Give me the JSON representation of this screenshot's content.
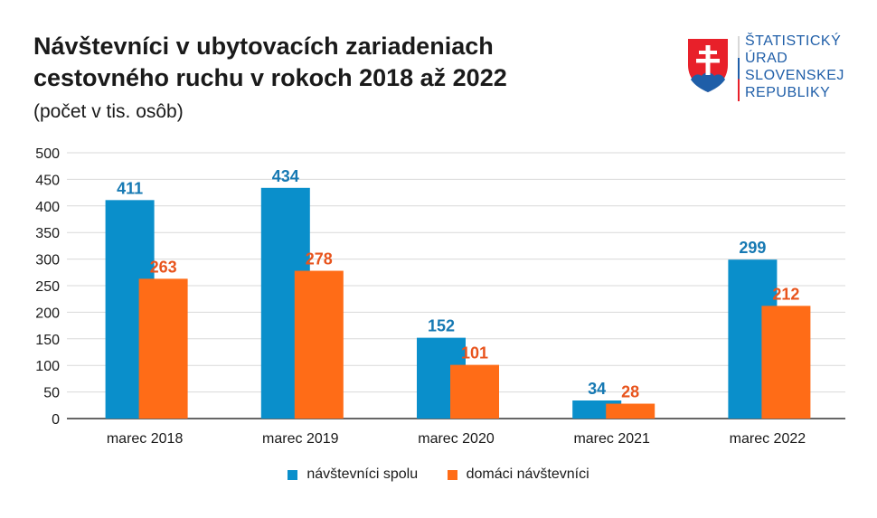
{
  "header": {
    "title_line1": "Návštevníci v ubytovacích zariadeniach",
    "title_line2": "cestovného ruchu v rokoch 2018 až 2022",
    "subtitle": "(počet v tis. osôb)"
  },
  "logo": {
    "line1": "ŠTATISTICKÝ",
    "line2": "ÚRAD",
    "line3": "SLOVENSKEJ",
    "line4": "REPUBLIKY",
    "text_color": "#1f5ea8"
  },
  "chart_data": {
    "type": "bar",
    "title": "Návštevníci v ubytovacích zariadeniach cestovného ruchu v rokoch 2018 až 2022",
    "subtitle": "(počet v tis. osôb)",
    "xlabel": "",
    "ylabel": "",
    "categories": [
      "marec 2018",
      "marec 2019",
      "marec 2020",
      "marec 2021",
      "marec 2022"
    ],
    "series": [
      {
        "name": "návštevníci spolu",
        "color": "#0a8fcb",
        "label_color": "#1679b3",
        "values": [
          411,
          434,
          152,
          34,
          299
        ]
      },
      {
        "name": "domáci návštevníci",
        "color": "#ff6c17",
        "label_color": "#e8541d",
        "values": [
          263,
          278,
          101,
          28,
          212
        ]
      }
    ],
    "ylim": [
      0,
      500
    ],
    "yticks": [
      0,
      50,
      100,
      150,
      200,
      250,
      300,
      350,
      400,
      450,
      500
    ],
    "grid": true,
    "legend_position": "bottom"
  }
}
